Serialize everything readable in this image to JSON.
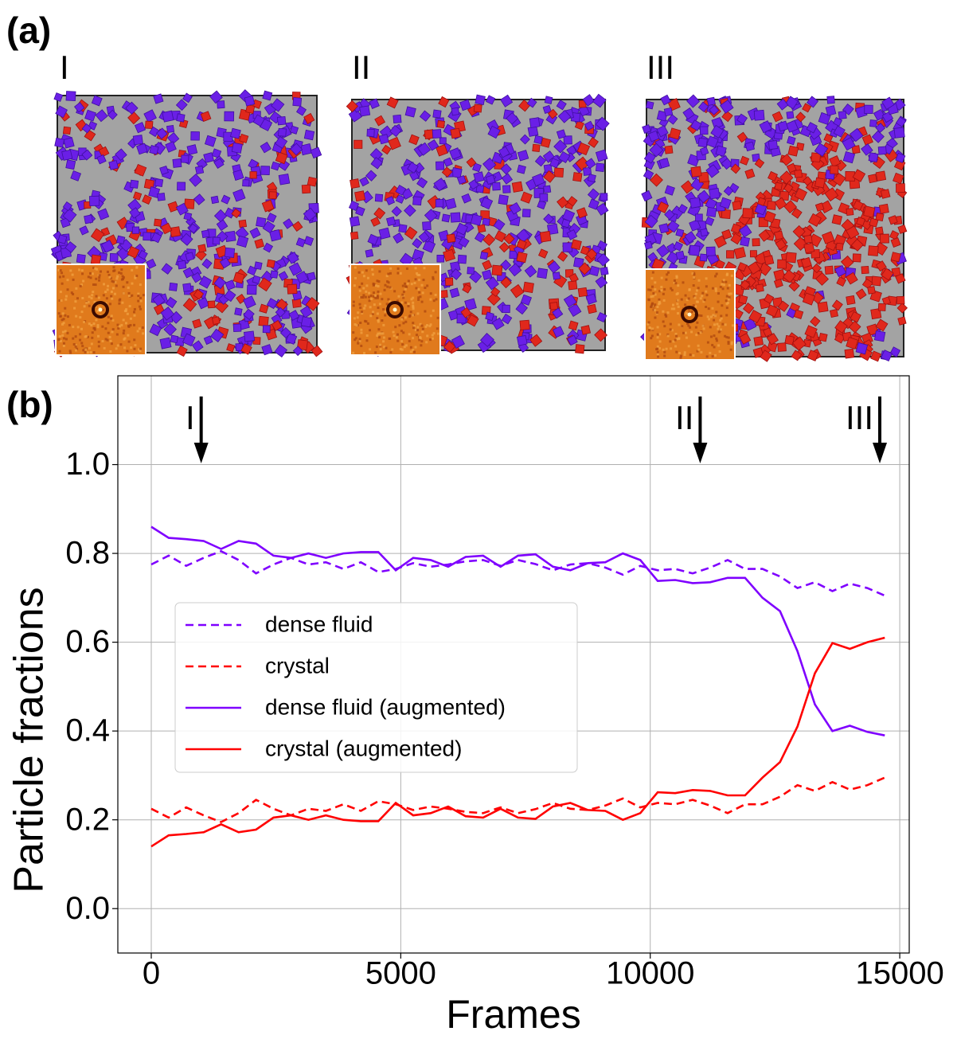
{
  "figure": {
    "panel_a_label": "(a)",
    "panel_b_label": "(b)",
    "snapshots": [
      "I",
      "II",
      "III"
    ]
  },
  "chart_data": {
    "type": "line",
    "xlabel": "Frames",
    "ylabel": "Particle fractions",
    "xlim": [
      -670,
      15190
    ],
    "ylim": [
      -0.1,
      1.2
    ],
    "xticks": [
      0,
      5000,
      10000,
      15000
    ],
    "yticks": [
      {
        "value": 0,
        "label": "0.0"
      },
      0.2,
      0.4,
      0.6,
      0.8,
      {
        "value": 1,
        "label": "1.0"
      }
    ],
    "grid": true,
    "legend": "center left",
    "annotations": [
      {
        "text": "I",
        "x": 1000
      },
      {
        "text": "II",
        "x": 11000
      },
      {
        "text": "III",
        "x": 14600
      }
    ],
    "x": [
      0,
      350,
      700,
      1050,
      1400,
      1750,
      2100,
      2450,
      2800,
      3150,
      3500,
      3850,
      4200,
      4550,
      4900,
      5250,
      5600,
      5950,
      6300,
      6650,
      7000,
      7350,
      7700,
      8050,
      8400,
      8750,
      9100,
      9450,
      9800,
      10150,
      10500,
      10850,
      11200,
      11550,
      11900,
      12250,
      12600,
      12950,
      13300,
      13650,
      14000,
      14350,
      14700
    ],
    "series": [
      {
        "name": "dense fluid",
        "color": "#7f00ff",
        "dash": true,
        "values": [
          0.775,
          0.795,
          0.772,
          0.79,
          0.805,
          0.785,
          0.755,
          0.775,
          0.79,
          0.775,
          0.78,
          0.765,
          0.78,
          0.758,
          0.765,
          0.778,
          0.77,
          0.775,
          0.782,
          0.785,
          0.772,
          0.785,
          0.776,
          0.762,
          0.775,
          0.778,
          0.768,
          0.752,
          0.772,
          0.762,
          0.765,
          0.755,
          0.768,
          0.785,
          0.765,
          0.765,
          0.748,
          0.722,
          0.735,
          0.715,
          0.732,
          0.722,
          0.705
        ]
      },
      {
        "name": "crystal",
        "color": "#ff0000",
        "dash": true,
        "values": [
          0.225,
          0.205,
          0.228,
          0.21,
          0.195,
          0.215,
          0.245,
          0.225,
          0.21,
          0.225,
          0.22,
          0.235,
          0.22,
          0.242,
          0.235,
          0.222,
          0.23,
          0.225,
          0.218,
          0.215,
          0.228,
          0.215,
          0.224,
          0.238,
          0.225,
          0.222,
          0.232,
          0.248,
          0.228,
          0.238,
          0.235,
          0.245,
          0.232,
          0.215,
          0.235,
          0.235,
          0.252,
          0.278,
          0.265,
          0.285,
          0.268,
          0.278,
          0.295
        ]
      },
      {
        "name": "dense fluid (augmented)",
        "color": "#7f00ff",
        "dash": false,
        "values": [
          0.86,
          0.835,
          0.832,
          0.828,
          0.81,
          0.828,
          0.822,
          0.795,
          0.79,
          0.8,
          0.79,
          0.8,
          0.803,
          0.803,
          0.762,
          0.79,
          0.785,
          0.77,
          0.792,
          0.795,
          0.77,
          0.795,
          0.798,
          0.77,
          0.762,
          0.778,
          0.78,
          0.8,
          0.785,
          0.738,
          0.74,
          0.733,
          0.735,
          0.745,
          0.745,
          0.7,
          0.67,
          0.58,
          0.46,
          0.4,
          0.412,
          0.398,
          0.39
        ]
      },
      {
        "name": "crystal (augmented)",
        "color": "#ff0000",
        "dash": false,
        "values": [
          0.14,
          0.165,
          0.168,
          0.172,
          0.19,
          0.172,
          0.178,
          0.205,
          0.21,
          0.2,
          0.21,
          0.2,
          0.197,
          0.197,
          0.238,
          0.21,
          0.215,
          0.23,
          0.208,
          0.205,
          0.225,
          0.205,
          0.202,
          0.23,
          0.238,
          0.222,
          0.22,
          0.2,
          0.215,
          0.262,
          0.26,
          0.267,
          0.265,
          0.255,
          0.255,
          0.295,
          0.33,
          0.41,
          0.53,
          0.598,
          0.585,
          0.6,
          0.61
        ]
      }
    ]
  }
}
